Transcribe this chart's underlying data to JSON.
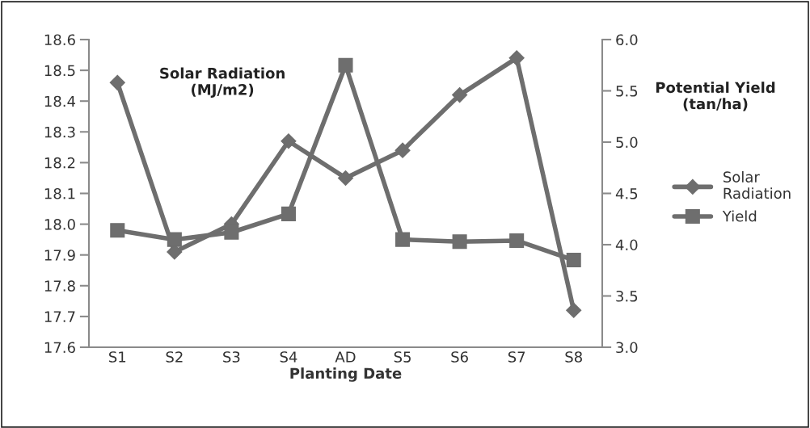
{
  "chart_data": {
    "type": "line",
    "xlabel": "Planting Date",
    "ylabel": "Solar Radiation\n(MJ/m2)",
    "y2label": "Potential Yield\n(tan/ha)",
    "categories": [
      "S1",
      "S2",
      "S3",
      "S4",
      "AD",
      "S5",
      "S6",
      "S7",
      "S8"
    ],
    "series": [
      {
        "name": "Solar\nRadiation",
        "color": "#6e6e6e",
        "marker": "diamond",
        "values": [
          18.46,
          17.91,
          18.0,
          18.27,
          18.15,
          18.24,
          18.42,
          18.54,
          17.72
        ]
      },
      {
        "name": "Yield",
        "color": "#6e6e6e",
        "marker": "square",
        "axis": "y2",
        "values": [
          4.14,
          4.05,
          4.12,
          4.3,
          5.75,
          4.05,
          4.03,
          4.04,
          3.85
        ]
      }
    ],
    "ylim": [
      17.6,
      18.6
    ],
    "yticks": [
      {
        "value": 17.6,
        "label": "17.6"
      },
      {
        "value": 17.7,
        "label": "17.7"
      },
      {
        "value": 17.8,
        "label": "17.8"
      },
      {
        "value": 17.9,
        "label": "17.9"
      },
      {
        "value": 18.0,
        "label": "18.0"
      },
      {
        "value": 18.1,
        "label": "18.1"
      },
      {
        "value": 18.2,
        "label": "18.2"
      },
      {
        "value": 18.3,
        "label": "18.3"
      },
      {
        "value": 18.4,
        "label": "18.4"
      },
      {
        "value": 18.5,
        "label": "18.5"
      },
      {
        "value": 18.6,
        "label": "18.6"
      }
    ],
    "y2lim": [
      3.0,
      6.0
    ],
    "y2ticks": [
      {
        "value": 3.0,
        "label": "3.0"
      },
      {
        "value": 3.5,
        "label": "3.5"
      },
      {
        "value": 4.0,
        "label": "4.0"
      },
      {
        "value": 4.5,
        "label": "4.5"
      },
      {
        "value": 5.0,
        "label": "5.0"
      },
      {
        "value": 5.5,
        "label": "5.5"
      },
      {
        "value": 6.0,
        "label": "6.0"
      }
    ],
    "grid": false,
    "legend": "right",
    "line_style": "solid"
  }
}
